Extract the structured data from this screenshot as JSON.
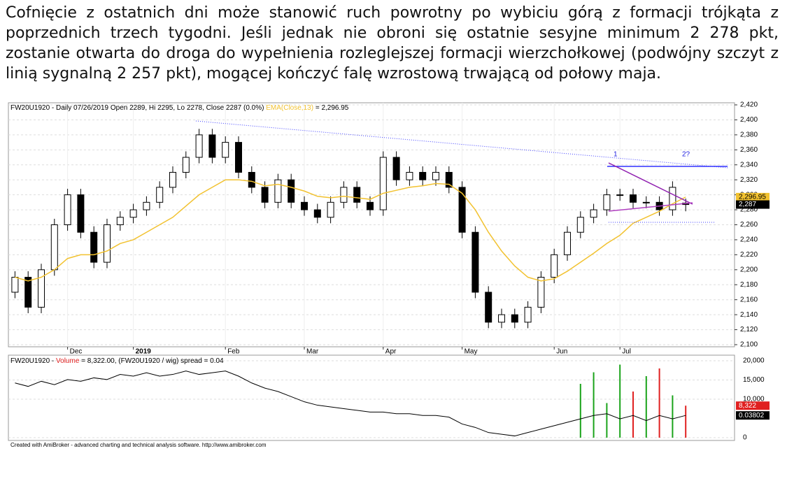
{
  "article": {
    "paragraph": "Cofnięcie z ostatnich dni może stanowić ruch powrotny po wybiciu górą z formacji trójkąta z poprzednich trzech tygodni. Jeśli jednak nie obroni się ostatnie sesyjne minimum 2 278 pkt, zostanie otwarta do droga do wypełnienia rozleglejszej formacji wierzchołkowej (podwójny szczyt z linią sygnalną 2 257 pkt), mogącej kończyć falę wzrostową trwającą od połowy maja."
  },
  "chart_data": [
    {
      "type": "candlestick",
      "title": "FW20U1920 - Daily 07/26/2019 Open 2289, Hi 2295, Lo 2278, Close 2287 (0.0%) ",
      "ema_name": "EMA(Close,13)",
      "ema_text": " = 2,296.95",
      "categories": [
        null,
        null,
        null,
        null,
        "Dec",
        null,
        null,
        null,
        null,
        "2019",
        null,
        null,
        null,
        null,
        null,
        null,
        "Feb",
        null,
        null,
        null,
        null,
        null,
        "Mar",
        null,
        null,
        null,
        null,
        null,
        "Apr",
        null,
        null,
        null,
        null,
        null,
        "May",
        null,
        null,
        null,
        null,
        null,
        null,
        "Jun",
        null,
        null,
        null,
        null,
        "Jul",
        null,
        null,
        null,
        null,
        null
      ],
      "open": [
        2170,
        2190,
        2150,
        2200,
        2260,
        2300,
        2250,
        2210,
        2260,
        2270,
        2280,
        2290,
        2310,
        2330,
        2350,
        2380,
        2350,
        2370,
        2330,
        2310,
        2290,
        2320,
        2290,
        2280,
        2270,
        2290,
        2310,
        2290,
        2280,
        2350,
        2320,
        2330,
        2320,
        2330,
        2310,
        2250,
        2170,
        2130,
        2140,
        2130,
        2150,
        2190,
        2220,
        2250,
        2270,
        2280,
        2300,
        2300,
        2290,
        2290,
        2280,
        2289
      ],
      "high": [
        2198,
        2198,
        2208,
        2268,
        2308,
        2308,
        2258,
        2268,
        2278,
        2288,
        2298,
        2318,
        2338,
        2358,
        2388,
        2388,
        2378,
        2378,
        2338,
        2318,
        2328,
        2328,
        2298,
        2288,
        2298,
        2318,
        2318,
        2298,
        2358,
        2358,
        2338,
        2338,
        2338,
        2338,
        2318,
        2258,
        2178,
        2148,
        2148,
        2158,
        2198,
        2228,
        2258,
        2278,
        2288,
        2308,
        2308,
        2308,
        2298,
        2298,
        2318,
        2295
      ],
      "low": [
        2162,
        2142,
        2142,
        2192,
        2252,
        2242,
        2202,
        2202,
        2252,
        2262,
        2272,
        2282,
        2302,
        2322,
        2342,
        2342,
        2342,
        2322,
        2302,
        2282,
        2282,
        2282,
        2272,
        2262,
        2262,
        2282,
        2282,
        2272,
        2272,
        2312,
        2312,
        2312,
        2312,
        2302,
        2242,
        2162,
        2122,
        2122,
        2122,
        2122,
        2142,
        2182,
        2212,
        2242,
        2262,
        2272,
        2292,
        2282,
        2282,
        2272,
        2272,
        2278
      ],
      "close": [
        2190,
        2150,
        2200,
        2260,
        2300,
        2250,
        2210,
        2260,
        2270,
        2280,
        2290,
        2310,
        2330,
        2350,
        2380,
        2350,
        2370,
        2330,
        2310,
        2290,
        2320,
        2290,
        2280,
        2270,
        2290,
        2310,
        2290,
        2280,
        2350,
        2320,
        2330,
        2320,
        2330,
        2310,
        2250,
        2170,
        2130,
        2140,
        2130,
        2150,
        2190,
        2220,
        2250,
        2270,
        2280,
        2300,
        2300,
        2290,
        2290,
        2280,
        2310,
        2287
      ],
      "ema": {
        "color": "#f2c230",
        "values": [
          2190,
          2185,
          2190,
          2200,
          2215,
          2220,
          2220,
          2225,
          2235,
          2240,
          2250,
          2260,
          2270,
          2285,
          2300,
          2310,
          2320,
          2320,
          2318,
          2312,
          2314,
          2310,
          2305,
          2298,
          2296,
          2298,
          2296,
          2294,
          2302,
          2306,
          2310,
          2312,
          2315,
          2314,
          2302,
          2280,
          2250,
          2225,
          2205,
          2190,
          2185,
          2188,
          2198,
          2210,
          2222,
          2235,
          2246,
          2262,
          2270,
          2278,
          2288,
          2296.95
        ]
      },
      "ylim": [
        2100,
        2420
      ],
      "yticks": [
        {
          "value": 2100,
          "label": "2,100"
        },
        {
          "value": 2120,
          "label": "2,120"
        },
        {
          "value": 2140,
          "label": "2,140"
        },
        {
          "value": 2160,
          "label": "2,160"
        },
        {
          "value": 2180,
          "label": "2,180"
        },
        {
          "value": 2200,
          "label": "2,200"
        },
        {
          "value": 2220,
          "label": "2,220"
        },
        {
          "value": 2240,
          "label": "2,240"
        },
        {
          "value": 2260,
          "label": "2,260"
        },
        {
          "value": 2280,
          "label": "2,280"
        },
        {
          "value": 2300,
          "label": "2,300"
        },
        {
          "value": 2320,
          "label": "2,320"
        },
        {
          "value": 2340,
          "label": "2,340"
        },
        {
          "value": 2360,
          "label": "2,360"
        },
        {
          "value": 2380,
          "label": "2,380"
        },
        {
          "value": 2400,
          "label": "2,400"
        },
        {
          "value": 2420,
          "label": "2,420"
        }
      ],
      "markers": [
        {
          "value": 2296.95,
          "label": "2,296.95",
          "color": "#f2c230"
        },
        {
          "value": 2287,
          "label": "2,287",
          "color": "#000000"
        }
      ],
      "annotations": [
        "1",
        "2?"
      ],
      "grid": true
    },
    {
      "type": "volume",
      "title_start": "FW20U1920 - ",
      "title_volume": "Volume",
      "title_end": " = 8,322.00, (FW20U1920 / wig) spread = 0.04",
      "values": [
        null,
        null,
        null,
        null,
        null,
        null,
        null,
        null,
        null,
        null,
        null,
        null,
        null,
        null,
        null,
        null,
        null,
        null,
        null,
        null,
        null,
        null,
        null,
        null,
        null,
        null,
        null,
        null,
        null,
        null,
        null,
        null,
        null,
        null,
        null,
        null,
        null,
        null,
        null,
        null,
        null,
        null,
        null,
        14000,
        17000,
        9000,
        19000,
        12000,
        16000,
        18000,
        11000,
        8322
      ],
      "up_color": "#1aa31a",
      "down_color": "#e02020",
      "spread": {
        "axis": "y2",
        "color": "#000000",
        "values": [
          0.057,
          0.055,
          0.058,
          0.056,
          0.059,
          0.058,
          0.06,
          0.059,
          0.062,
          0.061,
          0.063,
          0.061,
          0.062,
          0.064,
          0.062,
          0.063,
          0.064,
          0.061,
          0.057,
          0.054,
          0.052,
          0.049,
          0.046,
          0.044,
          0.043,
          0.042,
          0.041,
          0.04,
          0.04,
          0.039,
          0.039,
          0.038,
          0.038,
          0.037,
          0.033,
          0.031,
          0.028,
          0.027,
          0.026,
          0.028,
          0.03,
          0.032,
          0.034,
          0.036,
          0.038,
          0.039,
          0.036,
          0.038,
          0.035,
          0.038,
          0.036,
          0.03802
        ]
      },
      "ylim": [
        0,
        20000
      ],
      "yticks": [
        0,
        {
          "value": 10000,
          "label": "10,000"
        },
        {
          "value": 15000,
          "label": "15,000"
        },
        {
          "value": 20000,
          "label": "20,000"
        }
      ],
      "y2lim": [
        0.025,
        0.07
      ],
      "markers": [
        {
          "value": 8322,
          "label": "8,322",
          "color": "#e02020",
          "axis": "y"
        },
        {
          "value": 0.03802,
          "label": "0.03802",
          "color": "#000000",
          "axis": "y2"
        }
      ],
      "footer": "Created with AmiBroker - advanced charting and technical analysis software. http://www.amibroker.com"
    }
  ]
}
